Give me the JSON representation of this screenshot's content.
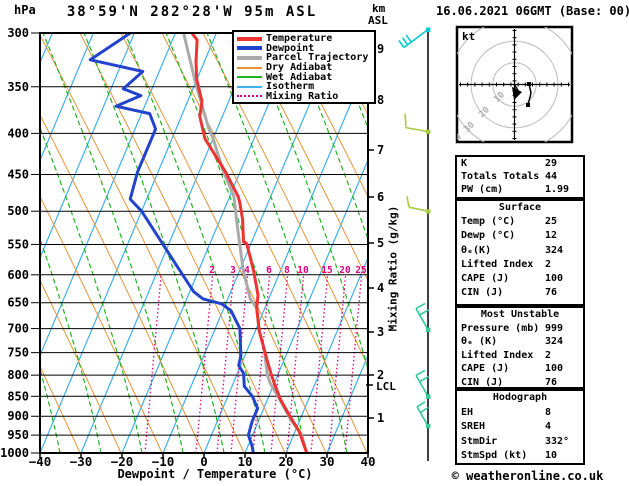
{
  "header": {
    "pressure_unit": "hPa",
    "title": "38°59'N 282°28'W 95m ASL",
    "date": "16.06.2021 06GMT (Base: 00)",
    "altitude_unit": "km",
    "altitude_ref": "ASL"
  },
  "legend": {
    "items": [
      {
        "label": "Temperature",
        "color": "#ee3333",
        "style": "thick"
      },
      {
        "label": "Dewpoint",
        "color": "#2244cc",
        "style": "thick"
      },
      {
        "label": "Parcel Trajectory",
        "color": "#aaaaaa",
        "style": "thick"
      },
      {
        "label": "Dry Adiabat",
        "color": "#e8943a",
        "style": "thin"
      },
      {
        "label": "Wet Adiabat",
        "color": "#21b421",
        "style": "thin"
      },
      {
        "label": "Isotherm",
        "color": "#3fb0ea",
        "style": "thin"
      },
      {
        "label": "Mixing Ratio",
        "color": "#e0007f",
        "style": "dotted"
      }
    ]
  },
  "axes": {
    "pressure_ticks": [
      300,
      350,
      400,
      450,
      500,
      550,
      600,
      650,
      700,
      750,
      800,
      850,
      900,
      950,
      1000
    ],
    "temperature_ticks": [
      -40,
      -30,
      -20,
      -10,
      0,
      10,
      20,
      30,
      40
    ],
    "xlabel": "Dewpoint / Temperature (°C)",
    "km_ticks": [
      9,
      8,
      7,
      6,
      5,
      4,
      3,
      2,
      1
    ],
    "lcl_label": "LCL",
    "mixing_axis_label": "Mixing Ratio (g/kg)",
    "mixing_ratio_values": [
      2,
      3,
      4,
      6,
      8,
      10,
      15,
      20,
      25
    ]
  },
  "hodograph": {
    "unit": "kt",
    "ring_labels": [
      "10",
      "20",
      "30",
      "40"
    ]
  },
  "tables": {
    "sections": [
      {
        "rows": [
          [
            "K",
            "29"
          ],
          [
            "Totals Totals",
            "44"
          ],
          [
            "PW (cm)",
            "1.99"
          ]
        ]
      },
      {
        "title": "Surface",
        "rows": [
          [
            "Temp (°C)",
            "25"
          ],
          [
            "Dewp (°C)",
            "12"
          ],
          [
            "θₑ(K)",
            "324"
          ],
          [
            "Lifted Index",
            "2"
          ],
          [
            "CAPE (J)",
            "100"
          ],
          [
            "CIN (J)",
            "76"
          ]
        ]
      },
      {
        "title": "Most Unstable",
        "rows": [
          [
            "Pressure (mb)",
            "999"
          ],
          [
            "θₑ (K)",
            "324"
          ],
          [
            "Lifted Index",
            "2"
          ],
          [
            "CAPE (J)",
            "100"
          ],
          [
            "CIN (J)",
            "76"
          ]
        ]
      },
      {
        "title": "Hodograph",
        "rows": [
          [
            "EH",
            "8"
          ],
          [
            "SREH",
            "4"
          ],
          [
            "StmDir",
            "332°"
          ],
          [
            "StmSpd (kt)",
            "10"
          ]
        ]
      }
    ]
  },
  "footer": {
    "credit": "© weatheronline.co.uk"
  },
  "chart_data": {
    "type": "skewt_log_p",
    "title": "38°59'N 282°28'W 95m ASL",
    "datetime": "16.06.2021 06GMT (Base: 00)",
    "elevation_m": 95,
    "pressure_axis_hPa": [
      300,
      1000
    ],
    "temp_axis_C": [
      -40,
      40
    ],
    "skew_note": "temperatures estimated from plotted curves",
    "temperature_profile_p_T": [
      [
        300,
        -46
      ],
      [
        306,
        -44
      ],
      [
        326,
        -42
      ],
      [
        343,
        -40
      ],
      [
        365,
        -36.5
      ],
      [
        381,
        -35.5
      ],
      [
        395,
        -33.5
      ],
      [
        406,
        -32
      ],
      [
        447,
        -23.5
      ],
      [
        479,
        -18
      ],
      [
        487,
        -17
      ],
      [
        512,
        -14.5
      ],
      [
        546,
        -12
      ],
      [
        549,
        -11
      ],
      [
        594,
        -6.5
      ],
      [
        636,
        -3
      ],
      [
        660,
        -2
      ],
      [
        705,
        1
      ],
      [
        742,
        4
      ],
      [
        768,
        6
      ],
      [
        800,
        8.5
      ],
      [
        819,
        10
      ],
      [
        856,
        13
      ],
      [
        898,
        17
      ],
      [
        940,
        21
      ],
      [
        999,
        25
      ]
    ],
    "dewpoint_profile_p_T": [
      [
        300,
        -61
      ],
      [
        324,
        -68
      ],
      [
        335,
        -54
      ],
      [
        352,
        -57
      ],
      [
        359,
        -52
      ],
      [
        370,
        -57
      ],
      [
        378,
        -48
      ],
      [
        395,
        -45
      ],
      [
        447,
        -45
      ],
      [
        483,
        -44
      ],
      [
        500,
        -40
      ],
      [
        590,
        -25
      ],
      [
        630,
        -19
      ],
      [
        643,
        -16
      ],
      [
        652,
        -11
      ],
      [
        665,
        -8
      ],
      [
        700,
        -4
      ],
      [
        756,
        -1
      ],
      [
        778,
        -0.5
      ],
      [
        796,
        1.5
      ],
      [
        826,
        3
      ],
      [
        850,
        6
      ],
      [
        880,
        8.5
      ],
      [
        913,
        8.5
      ],
      [
        950,
        9
      ],
      [
        980,
        11
      ],
      [
        999,
        12
      ]
    ],
    "parcel_profile_p_T": [
      [
        300,
        -48
      ],
      [
        346,
        -40
      ],
      [
        395,
        -32
      ],
      [
        406,
        -30
      ],
      [
        447,
        -24
      ],
      [
        479,
        -19
      ],
      [
        512,
        -16
      ],
      [
        546,
        -13
      ],
      [
        594,
        -9
      ],
      [
        643,
        -4.5
      ],
      [
        660,
        -2
      ],
      [
        705,
        1
      ],
      [
        742,
        4
      ],
      [
        800,
        7.5
      ],
      [
        819,
        9
      ],
      [
        863,
        13.5
      ],
      [
        906,
        17.5
      ],
      [
        950,
        22
      ],
      [
        999,
        25
      ]
    ],
    "wind_barbs": [
      {
        "pressure_hPa": 297,
        "color": "#00cccc"
      },
      {
        "pressure_hPa": 398,
        "color": "#aacc44"
      },
      {
        "pressure_hPa": 500,
        "color": "#aacc44"
      },
      {
        "pressure_hPa": 702,
        "color": "#33cc99"
      },
      {
        "pressure_hPa": 850,
        "color": "#33cc99"
      },
      {
        "pressure_hPa": 925,
        "color": "#33cc99"
      }
    ],
    "indices": {
      "K": 29,
      "Totals_Totals": 44,
      "PW_cm": 1.99,
      "surface": {
        "temp_C": 25,
        "dewp_C": 12,
        "theta_e_K": 324,
        "lifted_index": 2,
        "CAPE_J": 100,
        "CIN_J": 76
      },
      "most_unstable": {
        "pressure_mb": 999,
        "theta_e_K": 324,
        "lifted_index": 2,
        "CAPE_J": 100,
        "CIN_J": 76
      },
      "hodograph": {
        "EH": 8,
        "SREH": 4,
        "StmDir_deg": 332,
        "StmSpd_kt": 10
      }
    },
    "lcl_marker": "LCL"
  }
}
